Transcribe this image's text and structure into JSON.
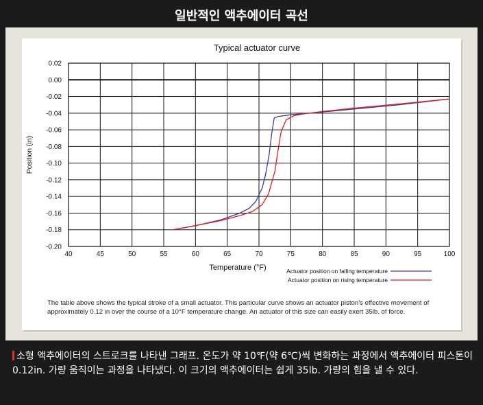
{
  "header": {
    "title": "일반적인 액추에이터 곡선"
  },
  "caption": {
    "text": "The table above shows the typical stroke of a small actuator. This particular curve shows an actuator piston’s effective movement of approximately 0.12 in over the course of a 10°F temperature change. An actuator of this size can easily exert 35lb. of force."
  },
  "footer": {
    "text": "소형 액추에이터의 스트로크를 나타낸 그래프. 온도가 약 10℉(약 6℃)씩 변화하는 과정에서 액추에이터 피스톤이 0.12in. 가량 움직이는 과정을 나타냈다. 이 크기의 액추에이터는 쉽게 35lb. 가량의 힘을 낼 수 있다."
  },
  "colors": {
    "falling": "#3b3b9b",
    "rising": "#e01b1b",
    "accent": "#d9362b"
  },
  "chart_data": {
    "type": "line",
    "title": "Typical actuator curve",
    "xlabel": "Temperature (°F)",
    "ylabel": "Position (in)",
    "xlim": [
      40,
      100
    ],
    "ylim": [
      -0.2,
      0.02
    ],
    "xticks": [
      40,
      45,
      50,
      55,
      60,
      65,
      70,
      75,
      80,
      85,
      90,
      95,
      100
    ],
    "yticks": [
      0.02,
      0.0,
      -0.02,
      -0.04,
      -0.06,
      -0.08,
      -0.1,
      -0.12,
      -0.14,
      -0.16,
      -0.18,
      -0.2
    ],
    "ytick_labels": [
      "0.02",
      "0.00",
      "-0.02",
      "-0.04",
      "-0.06",
      "-0.08",
      "-0.10",
      "-0.12",
      "-0.14",
      "-0.16",
      "-0.18",
      "-0.20"
    ],
    "grid": true,
    "legend_position": "bottom-right",
    "series": [
      {
        "name": "Actuator position on falling temperature",
        "color": "#3b3b9b",
        "x": [
          56.5,
          60,
          64,
          67,
          68.5,
          69.5,
          70.5,
          71,
          71.6,
          72.0,
          72.4,
          73,
          75,
          78,
          85,
          92,
          100
        ],
        "y": [
          -0.18,
          -0.175,
          -0.168,
          -0.16,
          -0.154,
          -0.146,
          -0.13,
          -0.115,
          -0.09,
          -0.065,
          -0.046,
          -0.044,
          -0.042,
          -0.04,
          -0.035,
          -0.03,
          -0.023
        ]
      },
      {
        "name": "Actuator position on rising temperature",
        "color": "#e01b1b",
        "x": [
          56.5,
          60,
          64,
          67,
          69,
          70.5,
          71.5,
          72.5,
          73.0,
          73.5,
          74.3,
          75.5,
          77,
          80,
          85,
          92,
          100
        ],
        "y": [
          -0.18,
          -0.175,
          -0.169,
          -0.163,
          -0.158,
          -0.15,
          -0.137,
          -0.11,
          -0.085,
          -0.062,
          -0.048,
          -0.043,
          -0.041,
          -0.038,
          -0.034,
          -0.029,
          -0.023
        ]
      }
    ]
  }
}
